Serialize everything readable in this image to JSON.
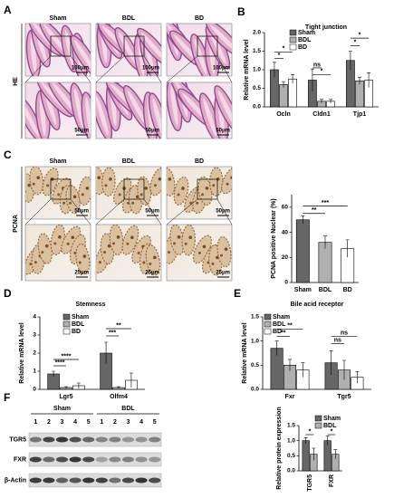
{
  "figure": {
    "panel_labels": [
      "A",
      "B",
      "C",
      "D",
      "E",
      "F"
    ],
    "he_image": {
      "side_label": "HE",
      "columns": [
        "Sham",
        "BDL",
        "BD"
      ],
      "scale_top": "100μm",
      "scale_bottom": "50μm"
    },
    "pcna_image": {
      "side_label": "PCNA",
      "columns": [
        "Sham",
        "BDL",
        "BD"
      ],
      "scale_top": "50μm",
      "scale_bottom": "25μm"
    },
    "blot": {
      "groups": [
        "Sham",
        "BDL"
      ],
      "lanes": [
        "1",
        "2",
        "3",
        "4",
        "5",
        "1",
        "2",
        "3",
        "4",
        "5"
      ],
      "rows": [
        "TGR5",
        "FXR",
        "β-Actin"
      ]
    }
  },
  "chart_data": [
    {
      "type": "bar",
      "title": "Tight junction",
      "y_label": "Relative mRNA level",
      "categories": [
        "Ocln",
        "Cldn1",
        "Tjp1"
      ],
      "series": [
        {
          "name": "Sham",
          "color": "#666666",
          "values": [
            1.0,
            0.72,
            1.25
          ],
          "errors": [
            0.2,
            0.3,
            0.25
          ]
        },
        {
          "name": "BDL",
          "color": "#b0b0b0",
          "values": [
            0.6,
            0.15,
            0.7
          ],
          "errors": [
            0.08,
            0.05,
            0.1
          ]
        },
        {
          "name": "BD",
          "color": "#ffffff",
          "values": [
            0.75,
            0.15,
            0.72
          ],
          "errors": [
            0.12,
            0.05,
            0.2
          ]
        }
      ],
      "ylim": [
        0,
        2
      ],
      "yticks": [
        {
          "value": 0,
          "label": "0.0"
        },
        0.5,
        {
          "value": 1,
          "label": "1.0"
        },
        1.5,
        {
          "value": 2,
          "label": "2.0"
        }
      ],
      "annotations": [
        {
          "text": "*",
          "category": "Ocln",
          "pair": [
            "Sham",
            "BDL"
          ],
          "y": 1.3
        },
        {
          "text": "*",
          "category": "Ocln",
          "pair": [
            "Sham",
            "BD"
          ],
          "y": 1.48
        },
        {
          "text": "ns",
          "category": "Cldn1",
          "pair": [
            "Sham",
            "BDL"
          ],
          "y": 1.05
        },
        {
          "text": "*",
          "category": "Cldn1",
          "pair": [
            "Sham",
            "BD"
          ],
          "y": 0.87
        },
        {
          "text": "*",
          "category": "Tjp1",
          "pair": [
            "Sham",
            "BDL"
          ],
          "y": 1.65
        },
        {
          "text": "*",
          "category": "Tjp1",
          "pair": [
            "Sham",
            "BD"
          ],
          "y": 1.85
        }
      ]
    },
    {
      "type": "bar",
      "y_label": "PCNA positive Nuclear (%)",
      "categories": [
        "Sham",
        "BDL",
        "BD"
      ],
      "values": [
        50,
        32,
        27
      ],
      "errors": [
        3,
        5,
        7
      ],
      "colors": [
        "#666666",
        "#b0b0b0",
        "#ffffff"
      ],
      "ylim": [
        0,
        70
      ],
      "yticks": [
        0,
        20,
        40,
        60
      ],
      "annotations": [
        {
          "text": "**",
          "pair": [
            "Sham",
            "BDL"
          ],
          "y": 55
        },
        {
          "text": "***",
          "pair": [
            "Sham",
            "BD"
          ],
          "y": 61
        }
      ]
    },
    {
      "type": "bar",
      "title": "Stemness",
      "y_label": "Relative mRNA level",
      "categories": [
        "Lgr5",
        "Olfm4"
      ],
      "series": [
        {
          "name": "Sham",
          "color": "#666666",
          "values": [
            0.85,
            2.0
          ],
          "errors": [
            0.15,
            0.6
          ]
        },
        {
          "name": "BDL",
          "color": "#b0b0b0",
          "values": [
            0.1,
            0.1
          ],
          "errors": [
            0.05,
            0.05
          ]
        },
        {
          "name": "BD",
          "color": "#ffffff",
          "values": [
            0.2,
            0.5
          ],
          "errors": [
            0.15,
            0.4
          ]
        }
      ],
      "ylim": [
        0,
        4
      ],
      "yticks": [
        0,
        1,
        2,
        3,
        4
      ],
      "annotations": [
        {
          "text": "****",
          "category": "Lgr5",
          "pair": [
            "Sham",
            "BDL"
          ],
          "y": 1.3
        },
        {
          "text": "****",
          "category": "Lgr5",
          "pair": [
            "Sham",
            "BD"
          ],
          "y": 1.65
        },
        {
          "text": "***",
          "category": "Olfm4",
          "pair": [
            "Sham",
            "BDL"
          ],
          "y": 2.95
        },
        {
          "text": "**",
          "category": "Olfm4",
          "pair": [
            "Sham",
            "BD"
          ],
          "y": 3.35
        }
      ]
    },
    {
      "type": "bar",
      "title": "Bile acid receptor",
      "y_label": "Relative mRNA level",
      "categories": [
        "Fxr",
        "Tgr5"
      ],
      "series": [
        {
          "name": "Sham",
          "color": "#666666",
          "values": [
            0.85,
            0.55
          ],
          "errors": [
            0.15,
            0.25
          ]
        },
        {
          "name": "BDL",
          "color": "#b0b0b0",
          "values": [
            0.5,
            0.4
          ],
          "errors": [
            0.12,
            0.2
          ]
        },
        {
          "name": "BD",
          "color": "#ffffff",
          "values": [
            0.4,
            0.25
          ],
          "errors": [
            0.15,
            0.12
          ]
        }
      ],
      "ylim": [
        0,
        1.5
      ],
      "yticks": [
        {
          "value": 0,
          "label": "0.0"
        },
        0.5,
        {
          "value": 1,
          "label": "1.0"
        },
        1.5
      ],
      "annotations": [
        {
          "text": "**",
          "category": "Fxr",
          "pair": [
            "Sham",
            "BDL"
          ],
          "y": 1.1
        },
        {
          "text": "**",
          "category": "Fxr",
          "pair": [
            "Sham",
            "BD"
          ],
          "y": 1.25
        },
        {
          "text": "ns",
          "category": "Tgr5",
          "pair": [
            "Sham",
            "BDL"
          ],
          "y": 0.95
        },
        {
          "text": "ns",
          "category": "Tgr5",
          "pair": [
            "Sham",
            "BD"
          ],
          "y": 1.1
        }
      ]
    },
    {
      "type": "bar",
      "y_label": "Relative protein expression",
      "categories": [
        "TGR5",
        "FXR"
      ],
      "series": [
        {
          "name": "Sham",
          "color": "#666666",
          "values": [
            1.0,
            1.0
          ],
          "errors": [
            0.1,
            0.15
          ]
        },
        {
          "name": "BDL",
          "color": "#b0b0b0",
          "values": [
            0.55,
            0.55
          ],
          "errors": [
            0.2,
            0.15
          ]
        }
      ],
      "ylim": [
        0,
        1.5
      ],
      "yticks": [
        {
          "value": 0,
          "label": "0.0"
        },
        0.5,
        {
          "value": 1,
          "label": "1.0"
        },
        1.5
      ],
      "annotations": [
        {
          "text": "*",
          "category": "TGR5",
          "pair": [
            "Sham",
            "BDL"
          ],
          "y": 1.2
        },
        {
          "text": "*",
          "category": "FXR",
          "pair": [
            "Sham",
            "BDL"
          ],
          "y": 1.2
        }
      ]
    }
  ]
}
